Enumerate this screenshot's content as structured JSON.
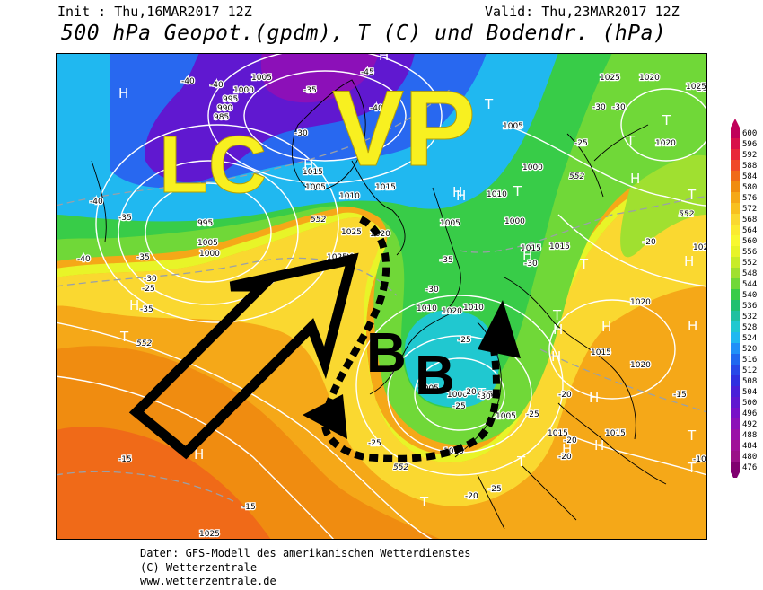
{
  "header": {
    "init": "Init : Thu,16MAR2017 12Z",
    "valid": "Valid: Thu,23MAR2017 12Z",
    "title": "500 hPa Geopot.(gpdm), T (C) und Bodendr. (hPa)"
  },
  "annotations": {
    "lc": "LC",
    "vp": "VP",
    "b1": "B",
    "b2": "B"
  },
  "legend": {
    "values": [
      600,
      596,
      592,
      588,
      584,
      580,
      576,
      572,
      568,
      564,
      560,
      556,
      552,
      548,
      544,
      540,
      536,
      532,
      528,
      524,
      520,
      516,
      512,
      508,
      504,
      500,
      496,
      492,
      488,
      484,
      480,
      476
    ],
    "colors": [
      "#c0005a",
      "#d8104a",
      "#e8283a",
      "#f04a28",
      "#f06a18",
      "#f08c10",
      "#f5a818",
      "#f8c020",
      "#fad830",
      "#fbea30",
      "#f8f830",
      "#e8f428",
      "#c8ec28",
      "#a0e030",
      "#70d838",
      "#38cc48",
      "#20c070",
      "#20c0a0",
      "#20c8d0",
      "#20b8f0",
      "#2090f8",
      "#2068f0",
      "#2848e8",
      "#3030e0",
      "#4a20d8",
      "#6018d0",
      "#7810c8",
      "#8c10b8",
      "#9a10a8",
      "#a01098",
      "#9a1088",
      "#800070"
    ]
  },
  "map_labels": {
    "pressure": [
      "1005",
      "1000",
      "995",
      "990",
      "985",
      "995",
      "1005",
      "1000",
      "1015",
      "1010",
      "1005",
      "1015",
      "1020",
      "1025",
      "1030",
      "1005",
      "1005",
      "1010",
      "1000",
      "1000",
      "1015",
      "1020",
      "1020",
      "1025",
      "1030",
      "1025",
      "1015",
      "1010",
      "1010",
      "1005",
      "1000",
      "995",
      "1005",
      "1010",
      "1015",
      "1020",
      "1015",
      "1015",
      "1020",
      "1025",
      "1025",
      "1025",
      "1020"
    ],
    "temperature": [
      "-40",
      "-40",
      "-35",
      "-45",
      "-40",
      "-35",
      "-40",
      "-30",
      "-40",
      "-35",
      "-35",
      "-30",
      "-25",
      "-30",
      "-25",
      "-30",
      "-35",
      "-30",
      "-25",
      "-20",
      "-25",
      "-30",
      "-20",
      "-25",
      "-20",
      "-15",
      "-15",
      "-20",
      "-25",
      "-20",
      "-15",
      "-10",
      "-20",
      "-25",
      "-30"
    ],
    "highs_lows": [
      "T",
      "T",
      "T",
      "T",
      "T",
      "T",
      "T",
      "T",
      "T",
      "T",
      "T",
      "T",
      "T",
      "H",
      "H",
      "H",
      "H",
      "H",
      "H",
      "H",
      "H",
      "H",
      "H",
      "H",
      "H",
      "H",
      "H",
      "H",
      "H",
      "H"
    ],
    "geopot": [
      "552",
      "552",
      "552",
      "552",
      "552"
    ]
  },
  "footer": {
    "line1": "Daten: GFS-Modell des amerikanischen Wetterdienstes",
    "line2": "(C) Wetterzentrale",
    "line3": "www.wetterzentrale.de"
  }
}
